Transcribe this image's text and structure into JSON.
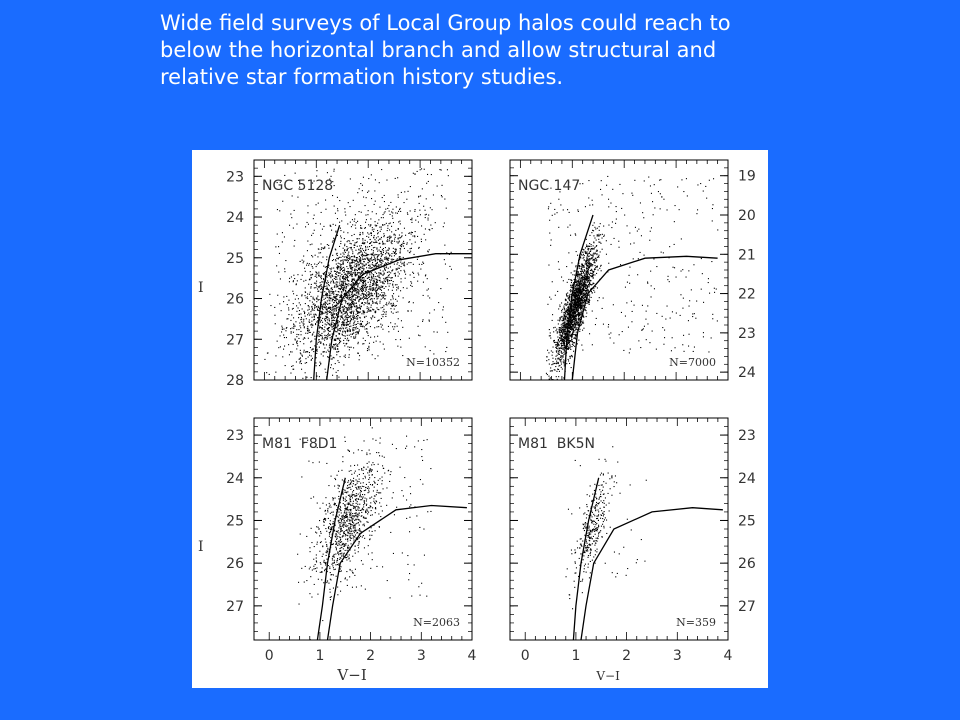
{
  "slide": {
    "lines": [
      "Wide field surveys of Local Group halos could reach to",
      "below the horizontal branch and allow structural and",
      "relative star formation history studies."
    ],
    "text_color": "#ffffff",
    "background_color": "#1a6cff"
  },
  "chart_data": [
    {
      "type": "scatter",
      "label": "NGC 5128",
      "count_label": "N=10352",
      "ylabel": "I",
      "y_axis_side": "left",
      "ylim": [
        22.6,
        28.0
      ],
      "y_ticks": [
        23,
        24,
        25,
        26,
        27,
        28
      ],
      "x_ticks": [],
      "xlim": [
        -0.2,
        4.0
      ],
      "blob": {
        "cx": 1.65,
        "cy": 25.8,
        "sx": 0.55,
        "sy": 0.85,
        "corr": -0.55,
        "n": 2600
      },
      "scatter_extra": {
        "x": [
          0.2,
          3.6
        ],
        "y": [
          22.8,
          27.5
        ],
        "n": 400
      },
      "curves": [
        [
          [
            0.95,
            28.0
          ],
          [
            1.0,
            27.0
          ],
          [
            1.1,
            26.0
          ],
          [
            1.25,
            25.0
          ],
          [
            1.45,
            24.2
          ]
        ],
        [
          [
            1.2,
            28.0
          ],
          [
            1.3,
            27.0
          ],
          [
            1.5,
            26.0
          ],
          [
            1.9,
            25.4
          ],
          [
            2.6,
            25.05
          ],
          [
            3.3,
            24.9
          ],
          [
            4.0,
            24.9
          ]
        ]
      ]
    },
    {
      "type": "scatter",
      "label": "NGC 147",
      "count_label": "N=7000",
      "ylabel": "",
      "y_axis_side": "right",
      "ylim": [
        18.6,
        24.2
      ],
      "y_ticks": [
        19,
        20,
        21,
        22,
        23,
        24
      ],
      "x_ticks": [],
      "xlim": [
        -0.2,
        4.0
      ],
      "blob": {
        "cx": 1.05,
        "cy": 22.3,
        "sx": 0.2,
        "sy": 0.75,
        "corr": -0.85,
        "n": 2000
      },
      "scatter_extra": {
        "x": [
          0.5,
          3.8
        ],
        "y": [
          19.0,
          23.5
        ],
        "n": 300
      },
      "curves": [
        [
          [
            0.85,
            24.2
          ],
          [
            0.9,
            23.0
          ],
          [
            1.0,
            22.0
          ],
          [
            1.15,
            21.0
          ],
          [
            1.4,
            20.0
          ]
        ],
        [
          [
            1.0,
            24.2
          ],
          [
            1.1,
            23.0
          ],
          [
            1.3,
            22.0
          ],
          [
            1.7,
            21.4
          ],
          [
            2.4,
            21.1
          ],
          [
            3.2,
            21.05
          ],
          [
            3.8,
            21.1
          ]
        ]
      ]
    },
    {
      "type": "scatter",
      "label": "M81  F8D1",
      "count_label": "N=2063",
      "ylabel": "I",
      "xlabel": "V−I",
      "y_axis_side": "left",
      "ylim": [
        22.6,
        27.8
      ],
      "y_ticks": [
        23,
        24,
        25,
        26,
        27
      ],
      "x_ticks": [
        0,
        1,
        2,
        3,
        4
      ],
      "xlim": [
        -0.3,
        4.0
      ],
      "blob": {
        "cx": 1.55,
        "cy": 25.0,
        "sx": 0.32,
        "sy": 0.7,
        "corr": -0.6,
        "n": 900
      },
      "scatter_extra": {
        "x": [
          0.6,
          3.2
        ],
        "y": [
          23.0,
          26.8
        ],
        "n": 120
      },
      "curves": [
        [
          [
            0.95,
            27.8
          ],
          [
            1.05,
            27.0
          ],
          [
            1.15,
            26.0
          ],
          [
            1.3,
            25.0
          ],
          [
            1.5,
            24.0
          ]
        ],
        [
          [
            1.15,
            27.8
          ],
          [
            1.25,
            27.0
          ],
          [
            1.4,
            26.0
          ],
          [
            1.8,
            25.3
          ],
          [
            2.5,
            24.75
          ],
          [
            3.2,
            24.65
          ],
          [
            3.9,
            24.7
          ]
        ]
      ]
    },
    {
      "type": "scatter",
      "label": "M81  BK5N",
      "count_label": "N=359",
      "ylabel": "",
      "xlabel": "V−I",
      "y_axis_side": "right",
      "ylim": [
        22.6,
        27.8
      ],
      "y_ticks": [
        23,
        24,
        25,
        26,
        27
      ],
      "x_ticks": [
        0,
        1,
        2,
        3,
        4
      ],
      "xlim": [
        -0.3,
        4.0
      ],
      "blob": {
        "cx": 1.3,
        "cy": 25.2,
        "sx": 0.18,
        "sy": 0.6,
        "corr": -0.75,
        "n": 300
      },
      "scatter_extra": {
        "x": [
          0.8,
          2.4
        ],
        "y": [
          23.5,
          26.5
        ],
        "n": 40
      },
      "curves": [
        [
          [
            0.95,
            27.8
          ],
          [
            1.0,
            27.0
          ],
          [
            1.1,
            26.0
          ],
          [
            1.25,
            25.0
          ],
          [
            1.45,
            24.0
          ]
        ],
        [
          [
            1.1,
            27.8
          ],
          [
            1.2,
            27.0
          ],
          [
            1.35,
            26.0
          ],
          [
            1.75,
            25.2
          ],
          [
            2.5,
            24.8
          ],
          [
            3.3,
            24.7
          ],
          [
            3.9,
            24.75
          ]
        ]
      ]
    }
  ]
}
